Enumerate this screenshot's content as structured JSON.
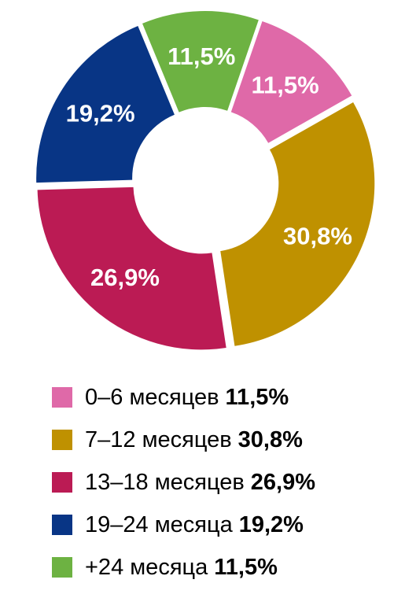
{
  "chart_data": {
    "type": "pie",
    "donut": true,
    "categories": [
      "0–6 месяцев",
      "7–12 месяцев",
      "13–18 месяцев",
      "19–24 месяца",
      "+24 месяца"
    ],
    "values": [
      11.5,
      30.8,
      26.9,
      19.2,
      11.5
    ],
    "value_labels": [
      "11,5%",
      "30,8%",
      "26,9%",
      "19,2%",
      "11,5%"
    ],
    "colors": [
      "#df69a8",
      "#bf9100",
      "#bb1b54",
      "#083585",
      "#6db242"
    ],
    "legend_position": "bottom",
    "title": "",
    "slices_exploded": true
  }
}
